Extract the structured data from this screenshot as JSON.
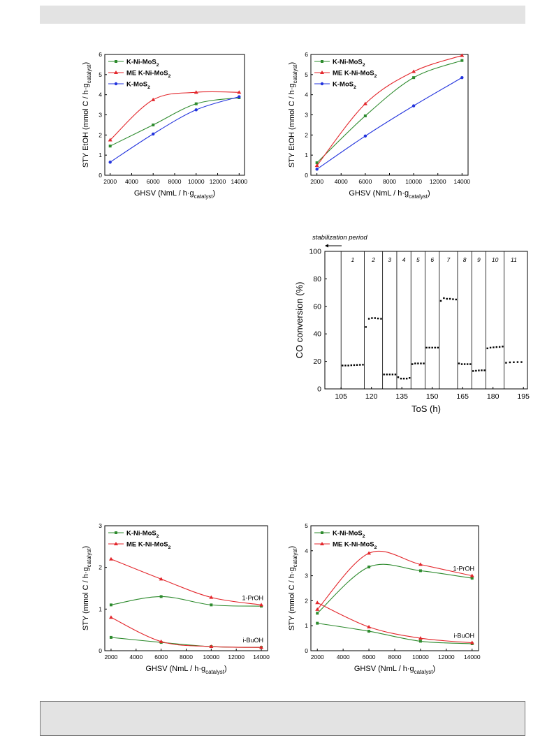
{
  "colors": {
    "green": "#2e8b2e",
    "red": "#e3262b",
    "blue": "#2233dd",
    "axis": "#000000",
    "band": "#e3e3e3"
  },
  "chart_data": [
    {
      "id": "sty-etoh-a",
      "type": "line",
      "ylabel": "STY EtOH (mmol C / h·g",
      "ylabel_sub": "catalyst",
      "ylabel_end": ")",
      "xlabel": "GHSV (NmL / h·g",
      "xlabel_sub": "catalyst",
      "xlabel_end": ")",
      "xlim": [
        1500,
        14500
      ],
      "ylim": [
        0,
        6
      ],
      "xticks": [
        2000,
        4000,
        6000,
        8000,
        10000,
        12000,
        14000
      ],
      "yticks": [
        0,
        1,
        2,
        3,
        4,
        5,
        6
      ],
      "legend_position": "top-left",
      "x": [
        2000,
        6000,
        10000,
        14000
      ],
      "series": [
        {
          "name": "K-Ni-MoS",
          "sub": "2",
          "color": "#2e8b2e",
          "marker": "square",
          "values": [
            1.45,
            2.5,
            3.55,
            3.85
          ]
        },
        {
          "name": "ME K-Ni-MoS",
          "sub": "2",
          "color": "#e3262b",
          "marker": "triangle",
          "values": [
            1.75,
            3.75,
            4.12,
            4.12
          ]
        },
        {
          "name": "K-MoS",
          "sub": "2",
          "color": "#2233dd",
          "marker": "circle",
          "values": [
            0.65,
            2.05,
            3.25,
            3.9
          ]
        }
      ]
    },
    {
      "id": "sty-etoh-b",
      "type": "line",
      "ylabel": "STY EtOH (mmol C / h·g",
      "ylabel_sub": "catalyst",
      "ylabel_end": ")",
      "xlabel": "GHSV (NmL / h·g",
      "xlabel_sub": "catalyst",
      "xlabel_end": ")",
      "xlim": [
        1500,
        14500
      ],
      "ylim": [
        0,
        6
      ],
      "xticks": [
        2000,
        4000,
        6000,
        8000,
        10000,
        12000,
        14000
      ],
      "yticks": [
        0,
        1,
        2,
        3,
        4,
        5,
        6
      ],
      "legend_position": "top-left",
      "x": [
        2000,
        6000,
        10000,
        14000
      ],
      "series": [
        {
          "name": "K-Ni-MoS",
          "sub": "2",
          "color": "#2e8b2e",
          "marker": "square",
          "values": [
            0.62,
            2.95,
            4.85,
            5.7
          ]
        },
        {
          "name": "ME K-Ni-MoS",
          "sub": "2",
          "color": "#e3262b",
          "marker": "triangle",
          "values": [
            0.48,
            3.55,
            5.15,
            5.95
          ]
        },
        {
          "name": "K-MoS",
          "sub": "2",
          "color": "#2233dd",
          "marker": "circle",
          "values": [
            0.3,
            1.95,
            3.45,
            4.85
          ]
        }
      ]
    },
    {
      "id": "co-conversion",
      "type": "scatter",
      "annotation": "stabilization period",
      "ylabel": "CO conversion (%)",
      "xlabel": "ToS (h)",
      "xlim": [
        97,
        197
      ],
      "ylim": [
        0,
        100
      ],
      "xticks": [
        105,
        120,
        135,
        150,
        165,
        180,
        195
      ],
      "yticks": [
        0,
        20,
        40,
        60,
        80,
        100
      ],
      "periods": [
        {
          "label": "1",
          "start": 105,
          "end": 116.5,
          "values": [
            17,
            17,
            17,
            17.2,
            17.3,
            17.4,
            17.5,
            17.6
          ]
        },
        {
          "label": "2",
          "start": 116.5,
          "end": 125.5,
          "values": [
            45,
            51,
            51.5,
            51.5,
            51.2,
            51
          ]
        },
        {
          "label": "3",
          "start": 125.5,
          "end": 132.5,
          "values": [
            10.5,
            10.5,
            10.5,
            10.5,
            10.5
          ]
        },
        {
          "label": "4",
          "start": 132.5,
          "end": 139.5,
          "values": [
            8.5,
            7.5,
            7.5,
            7.5,
            8
          ]
        },
        {
          "label": "5",
          "start": 139.5,
          "end": 146.5,
          "values": [
            18,
            18.5,
            18.5,
            18.5,
            18.5
          ]
        },
        {
          "label": "6",
          "start": 146.5,
          "end": 153.5,
          "values": [
            30,
            30,
            30,
            30,
            30
          ]
        },
        {
          "label": "7",
          "start": 153.5,
          "end": 162.5,
          "values": [
            64,
            66,
            65.5,
            65.5,
            65.2,
            65
          ]
        },
        {
          "label": "8",
          "start": 162.5,
          "end": 169.5,
          "values": [
            18.5,
            18,
            18,
            18,
            18
          ]
        },
        {
          "label": "9",
          "start": 169.5,
          "end": 176.5,
          "values": [
            13,
            13.2,
            13.4,
            13.5,
            13.5
          ]
        },
        {
          "label": "10",
          "start": 176.5,
          "end": 185.5,
          "values": [
            29.5,
            30,
            30.2,
            30.4,
            30.5,
            30.8
          ]
        },
        {
          "label": "11",
          "start": 185.5,
          "end": 195,
          "values": [
            19,
            19.3,
            19.4,
            19.5,
            19.5
          ]
        }
      ]
    },
    {
      "id": "sty-alcohols-a",
      "type": "line",
      "ylabel": "STY  (mmol C / h·g",
      "ylabel_sub": "catalyst",
      "ylabel_end": ")",
      "xlabel": "GHSV (NmL / h·g",
      "xlabel_sub": "catalyst",
      "xlabel_end": ")",
      "xlim": [
        1500,
        14500
      ],
      "ylim": [
        0,
        3
      ],
      "xticks": [
        2000,
        4000,
        6000,
        8000,
        10000,
        12000,
        14000
      ],
      "yticks": [
        0,
        1,
        2,
        3
      ],
      "legend_position": "top-left",
      "annotations": [
        "1-PrOH",
        "i-BuOH"
      ],
      "x": [
        2000,
        6000,
        10000,
        14000
      ],
      "series": [
        {
          "name": "K-Ni-MoS",
          "sub": "2",
          "group": "1-PrOH",
          "color": "#2e8b2e",
          "marker": "square",
          "values": [
            1.1,
            1.3,
            1.1,
            1.07
          ]
        },
        {
          "name": "ME K-Ni-MoS",
          "sub": "2",
          "group": "1-PrOH",
          "color": "#e3262b",
          "marker": "triangle",
          "values": [
            2.2,
            1.72,
            1.28,
            1.1
          ]
        },
        {
          "name": "K-Ni-MoS",
          "sub": "2",
          "group": "i-BuOH",
          "color": "#2e8b2e",
          "marker": "square",
          "values": [
            0.32,
            0.2,
            0.1,
            0.08
          ]
        },
        {
          "name": "ME K-Ni-MoS",
          "sub": "2",
          "group": "i-BuOH",
          "color": "#e3262b",
          "marker": "triangle",
          "values": [
            0.8,
            0.22,
            0.1,
            0.08
          ]
        }
      ]
    },
    {
      "id": "sty-alcohols-b",
      "type": "line",
      "ylabel": "STY  (mmol C / h·g",
      "ylabel_sub": "catalyst",
      "ylabel_end": ")",
      "xlabel": "GHSV (NmL / h·g",
      "xlabel_sub": "catalyst",
      "xlabel_end": ")",
      "xlim": [
        1500,
        14500
      ],
      "ylim": [
        0,
        5
      ],
      "xticks": [
        2000,
        4000,
        6000,
        8000,
        10000,
        12000,
        14000
      ],
      "yticks": [
        0,
        1,
        2,
        3,
        4,
        5
      ],
      "legend_position": "top-left",
      "annotations": [
        "1-PrOH",
        "i-BuOH"
      ],
      "x": [
        2000,
        6000,
        10000,
        14000
      ],
      "series": [
        {
          "name": "K-Ni-MoS",
          "sub": "2",
          "group": "1-PrOH",
          "color": "#2e8b2e",
          "marker": "square",
          "values": [
            1.5,
            3.35,
            3.2,
            2.9
          ]
        },
        {
          "name": "ME K-Ni-MoS",
          "sub": "2",
          "group": "1-PrOH",
          "color": "#e3262b",
          "marker": "triangle",
          "values": [
            1.65,
            3.9,
            3.45,
            3.0
          ]
        },
        {
          "name": "K-Ni-MoS",
          "sub": "2",
          "group": "i-BuOH",
          "color": "#2e8b2e",
          "marker": "square",
          "values": [
            1.1,
            0.78,
            0.38,
            0.28
          ]
        },
        {
          "name": "ME K-Ni-MoS",
          "sub": "2",
          "group": "i-BuOH",
          "color": "#e3262b",
          "marker": "triangle",
          "values": [
            1.92,
            0.95,
            0.5,
            0.32
          ]
        }
      ]
    }
  ]
}
